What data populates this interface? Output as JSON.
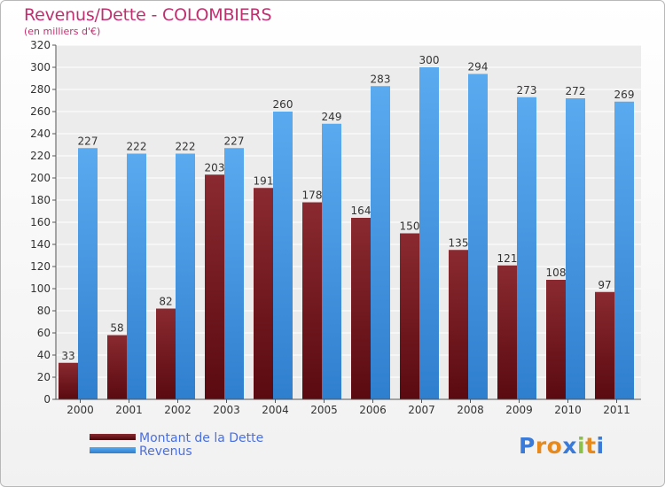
{
  "page": {
    "title": "Revenus/Dette - COLOMBIERS",
    "subtitle": "(en milliers d'€)"
  },
  "colors": {
    "dette": "#6e1218",
    "revenus": "#4a9ee6",
    "title": "#c0306f",
    "legend_text": "#4a6fe0"
  },
  "legend": {
    "items": [
      {
        "label": "Montant de la Dette"
      },
      {
        "label": "Revenus"
      }
    ]
  },
  "logo": {
    "letters": [
      "P",
      "r",
      "o",
      "x",
      "i",
      "t",
      "i"
    ],
    "colors": [
      "#3a7ad8",
      "#e8891c",
      "#e8891c",
      "#3a7ad8",
      "#8cc04a",
      "#e8891c",
      "#3a7ad8"
    ]
  },
  "chart_data": {
    "type": "bar",
    "categories": [
      "2000",
      "2001",
      "2002",
      "2003",
      "2004",
      "2005",
      "2006",
      "2007",
      "2008",
      "2009",
      "2010",
      "2011"
    ],
    "series": [
      {
        "name": "Montant de la Dette",
        "values": [
          33,
          58,
          82,
          203,
          191,
          178,
          164,
          150,
          135,
          121,
          108,
          97
        ]
      },
      {
        "name": "Revenus",
        "values": [
          227,
          222,
          222,
          227,
          260,
          249,
          283,
          300,
          294,
          273,
          272,
          269
        ]
      }
    ],
    "title": "Revenus/Dette - COLOMBIERS",
    "subtitle": "(en milliers d'€)",
    "xlabel": "",
    "ylabel": "",
    "ylim": [
      0,
      320
    ],
    "yticks": [
      0,
      20,
      40,
      60,
      80,
      100,
      120,
      140,
      160,
      180,
      200,
      220,
      240,
      260,
      280,
      300,
      320
    ],
    "grid": true,
    "legend_position": "bottom-left"
  }
}
